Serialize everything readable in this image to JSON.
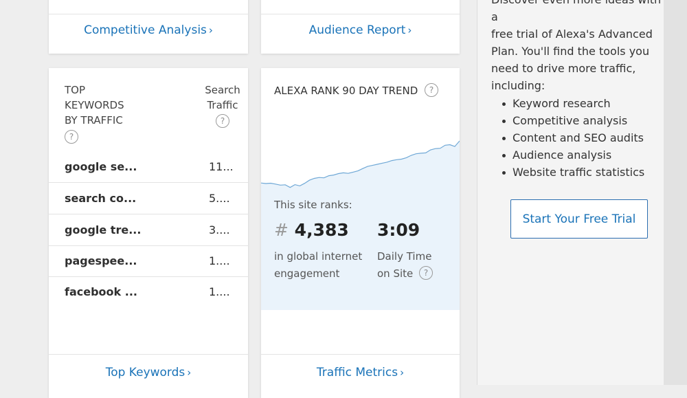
{
  "competitive_card": {
    "link_label": "Competitive Analysis",
    "chevron": "›"
  },
  "audience_card": {
    "link_label": "Audience Report",
    "chevron": "›"
  },
  "keywords_card": {
    "header_left": [
      "TOP",
      "KEYWORDS",
      "BY TRAFFIC"
    ],
    "header_right": [
      "Search",
      "Traffic"
    ],
    "help_glyph": "?",
    "rows": [
      {
        "keyword": "google se...",
        "traffic": "11..."
      },
      {
        "keyword": "search co...",
        "traffic": "5...."
      },
      {
        "keyword": "google tre...",
        "traffic": "3...."
      },
      {
        "keyword": "pagespee...",
        "traffic": "1...."
      },
      {
        "keyword": "facebook ...",
        "traffic": "1...."
      }
    ],
    "link_label": "Top Keywords",
    "chevron": "›"
  },
  "rank_card": {
    "title": "ALEXA RANK 90 DAY TREND",
    "help_glyph": "?",
    "site_ranks_label": "This site ranks:",
    "rank_hash": "#",
    "rank_value": "4,383",
    "rank_caption_1": "in global internet",
    "rank_caption_2": "engagement",
    "time_value": "3:09",
    "time_caption_1": "Daily Time",
    "time_caption_2": "on Site",
    "link_label": "Traffic Metrics",
    "chevron": "›",
    "chart_data": {
      "type": "line",
      "series": [
        {
          "values": [
            57,
            57.3,
            57.1,
            57.6,
            58.2,
            58.0,
            59.5,
            57.9,
            58.6,
            57.2,
            55.4,
            54.4,
            53.9,
            54.1,
            52.9,
            52.5,
            51.7,
            51.3,
            51.6,
            50.9,
            50.2,
            48.9,
            47.7,
            47.1,
            46.5,
            45.9,
            45.3,
            44.4,
            43.9,
            43.6,
            42.8,
            41.5,
            40.6,
            40.3,
            40.1,
            38.4,
            37.7,
            37.5,
            35.8,
            35.5,
            36.5,
            33.4
          ]
        }
      ],
      "grid": false,
      "axes": false
    },
    "colors": {
      "line": "#6fa8d6",
      "fill": "#eaf3fb"
    }
  },
  "sidebar": {
    "intro_lines": [
      "Discover even more ideas with a",
      "free trial of Alexa's Advanced",
      "Plan. You'll find the tools you",
      "need to drive more traffic,",
      "including:"
    ],
    "features": [
      "Keyword research",
      "Competitive analysis",
      "Content and SEO audits",
      "Audience analysis",
      "Website traffic statistics"
    ],
    "cta_label": "Start Your Free Trial"
  }
}
